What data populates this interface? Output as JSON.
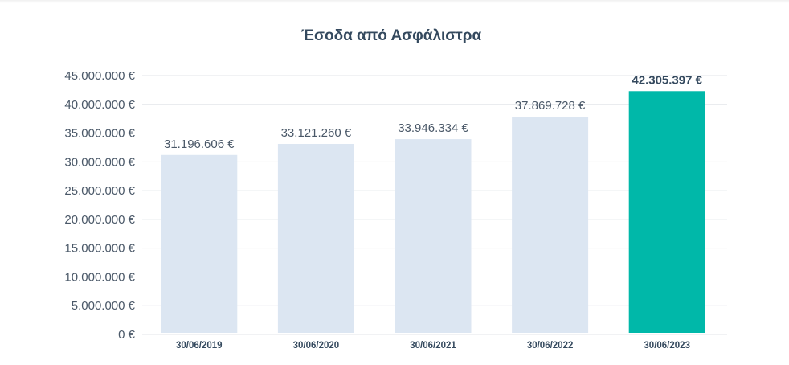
{
  "chart_data": {
    "type": "bar",
    "title": "Έσοδα από Ασφάλιστρα",
    "categories": [
      "30/06/2019",
      "30/06/2020",
      "30/06/2021",
      "30/06/2022",
      "30/06/2023"
    ],
    "values": [
      31196606,
      33121260,
      33946334,
      37869728,
      42305397
    ],
    "value_labels": [
      "31.196.606 €",
      "33.121.260 €",
      "33.946.334 €",
      "37.869.728 €",
      "42.305.397 €"
    ],
    "highlight_index": 4,
    "ylim": [
      0,
      45000000
    ],
    "yticks": [
      0,
      5000000,
      10000000,
      15000000,
      20000000,
      25000000,
      30000000,
      35000000,
      40000000,
      45000000
    ],
    "ytick_labels": [
      "0 €",
      "5.000.000 €",
      "10.000.000 €",
      "15.000.000 €",
      "20.000.000 €",
      "25.000.000 €",
      "30.000.000 €",
      "35.000.000 €",
      "40.000.000 €",
      "45.000.000 €"
    ],
    "grid": true,
    "legend": "none",
    "colors": {
      "bar": "#dce6f2",
      "highlight": "#00b8a9",
      "grid": "#e3e6ea"
    }
  }
}
